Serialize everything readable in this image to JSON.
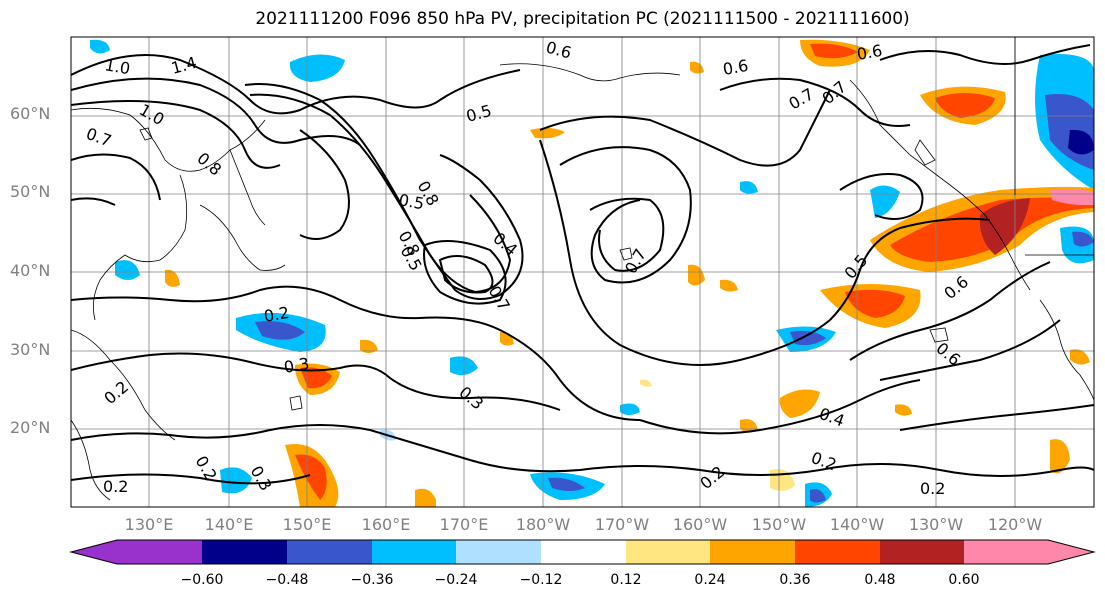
{
  "title": "2021111200 F096 850 hPa PV, precipitation PC (2021111500 - 2021111600)",
  "map": {
    "lat_labels": [
      "60°N",
      "50°N",
      "40°N",
      "30°N",
      "20°N"
    ],
    "lon_labels": [
      "130°E",
      "140°E",
      "150°E",
      "160°E",
      "170°E",
      "180°W",
      "170°W",
      "160°W",
      "150°W",
      "140°W",
      "130°W",
      "120°W"
    ],
    "contour_labels": [
      "1.0",
      "1.4",
      "1.0",
      "0.7",
      "0.8",
      "0.6",
      "0.5",
      "0.8",
      "0.5",
      "0.8",
      "0.5",
      "0.4",
      "0.7",
      "0.7",
      "0.7",
      "0.6",
      "0.7",
      "0.6",
      "0.5",
      "0.6",
      "0.6",
      "0.2",
      "0.3",
      "0.2",
      "0.3",
      "0.2",
      "0.3",
      "0.2",
      "0.4",
      "0.2",
      "0.2",
      "0.2"
    ]
  },
  "colorbar": {
    "tick_labels": [
      "−0.60",
      "−0.48",
      "−0.36",
      "−0.24",
      "−0.12",
      "0.12",
      "0.24",
      "0.36",
      "0.48",
      "0.60"
    ],
    "colors": [
      "#9932cc",
      "#00008b",
      "#3a56cc",
      "#00bfff",
      "#b0e0ff",
      "#ffffff",
      "#ffe680",
      "#ffa500",
      "#ff4500",
      "#b22222",
      "#ff88aa"
    ]
  }
}
